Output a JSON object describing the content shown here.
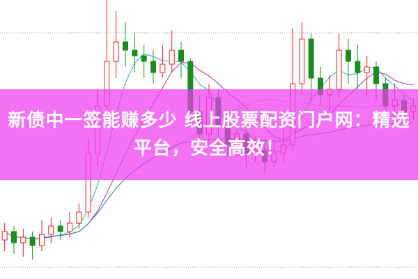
{
  "banner": {
    "title": "新债中一签能赚多少 线上股票配资门户网：精选平台，安全高效！"
  },
  "colors": {
    "up": "#e8211b",
    "down": "#1c8c22",
    "banner": "#ee3cee",
    "ma5": "#33aaaa",
    "ma10": "#aa33aa",
    "ma20": "#f39bd6",
    "ma60": "#2f7f9f"
  },
  "chart_data": {
    "type": "candlestick",
    "grid": true,
    "moving_averages": [
      5,
      10,
      20,
      60
    ],
    "candles": [
      {
        "o": 14,
        "c": 17,
        "h": 20,
        "l": 10
      },
      {
        "o": 17,
        "c": 13,
        "h": 19,
        "l": 9
      },
      {
        "o": 13,
        "c": 15,
        "h": 18,
        "l": 8
      },
      {
        "o": 15,
        "c": 12,
        "h": 17,
        "l": 7
      },
      {
        "o": 12,
        "c": 16,
        "h": 21,
        "l": 10
      },
      {
        "o": 16,
        "c": 19,
        "h": 22,
        "l": 13
      },
      {
        "o": 19,
        "c": 17,
        "h": 21,
        "l": 14
      },
      {
        "o": 17,
        "c": 20,
        "h": 24,
        "l": 15
      },
      {
        "o": 20,
        "c": 24,
        "h": 27,
        "l": 18
      },
      {
        "o": 24,
        "c": 45,
        "h": 50,
        "l": 22
      },
      {
        "o": 45,
        "c": 62,
        "h": 68,
        "l": 40
      },
      {
        "o": 62,
        "c": 78,
        "h": 100,
        "l": 60
      },
      {
        "o": 78,
        "c": 85,
        "h": 96,
        "l": 72
      },
      {
        "o": 85,
        "c": 82,
        "h": 92,
        "l": 76
      },
      {
        "o": 82,
        "c": 80,
        "h": 88,
        "l": 74
      },
      {
        "o": 80,
        "c": 78,
        "h": 84,
        "l": 72
      },
      {
        "o": 78,
        "c": 74,
        "h": 82,
        "l": 70
      },
      {
        "o": 74,
        "c": 77,
        "h": 84,
        "l": 72
      },
      {
        "o": 77,
        "c": 82,
        "h": 89,
        "l": 74
      },
      {
        "o": 82,
        "c": 78,
        "h": 85,
        "l": 72
      },
      {
        "o": 78,
        "c": 60,
        "h": 79,
        "l": 55
      },
      {
        "o": 60,
        "c": 52,
        "h": 66,
        "l": 50
      },
      {
        "o": 52,
        "c": 65,
        "h": 70,
        "l": 48
      },
      {
        "o": 65,
        "c": 55,
        "h": 68,
        "l": 45
      },
      {
        "o": 55,
        "c": 48,
        "h": 58,
        "l": 44
      },
      {
        "o": 48,
        "c": 52,
        "h": 55,
        "l": 44
      },
      {
        "o": 52,
        "c": 45,
        "h": 54,
        "l": 40
      },
      {
        "o": 45,
        "c": 46,
        "h": 51,
        "l": 42
      },
      {
        "o": 46,
        "c": 42,
        "h": 50,
        "l": 38
      },
      {
        "o": 42,
        "c": 45,
        "h": 49,
        "l": 40
      },
      {
        "o": 45,
        "c": 48,
        "h": 54,
        "l": 42
      },
      {
        "o": 48,
        "c": 70,
        "h": 90,
        "l": 46
      },
      {
        "o": 70,
        "c": 86,
        "h": 92,
        "l": 66
      },
      {
        "o": 86,
        "c": 72,
        "h": 88,
        "l": 64
      },
      {
        "o": 72,
        "c": 66,
        "h": 76,
        "l": 62
      },
      {
        "o": 66,
        "c": 68,
        "h": 73,
        "l": 60
      },
      {
        "o": 68,
        "c": 82,
        "h": 88,
        "l": 65
      },
      {
        "o": 82,
        "c": 78,
        "h": 86,
        "l": 70
      },
      {
        "o": 78,
        "c": 74,
        "h": 84,
        "l": 68
      },
      {
        "o": 74,
        "c": 76,
        "h": 80,
        "l": 66
      },
      {
        "o": 76,
        "c": 70,
        "h": 78,
        "l": 64
      },
      {
        "o": 70,
        "c": 62,
        "h": 72,
        "l": 58
      },
      {
        "o": 62,
        "c": 64,
        "h": 70,
        "l": 56
      },
      {
        "o": 64,
        "c": 60,
        "h": 66,
        "l": 56
      },
      {
        "o": 60,
        "c": 62,
        "h": 65,
        "l": 57
      }
    ]
  }
}
